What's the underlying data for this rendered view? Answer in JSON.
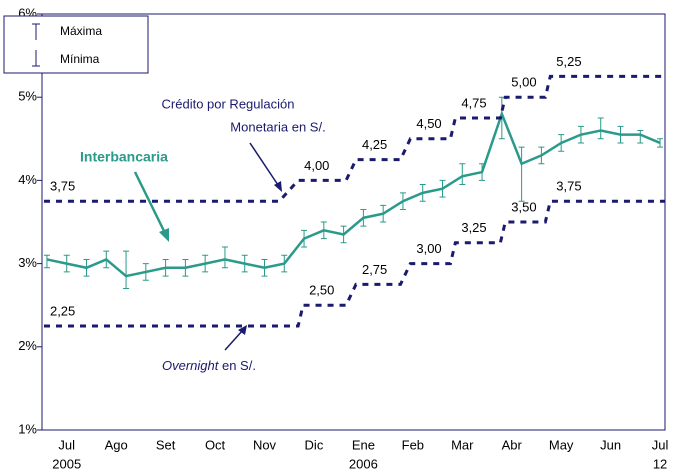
{
  "chart_data": {
    "type": "line",
    "xlim": [
      -0.5,
      12.1
    ],
    "xticks": [
      {
        "value": 0,
        "label": "Jul"
      },
      {
        "value": 1,
        "label": "Ago"
      },
      {
        "value": 2,
        "label": "Set"
      },
      {
        "value": 3,
        "label": "Oct"
      },
      {
        "value": 4,
        "label": "Nov"
      },
      {
        "value": 5,
        "label": "Dic"
      },
      {
        "value": 6,
        "label": "Ene"
      },
      {
        "value": 7,
        "label": "Feb"
      },
      {
        "value": 8,
        "label": "Mar"
      },
      {
        "value": 9,
        "label": "Abr"
      },
      {
        "value": 10,
        "label": "May"
      },
      {
        "value": 11,
        "label": "Jun"
      },
      {
        "value": 12,
        "label": "Jul"
      }
    ],
    "year_labels": [
      {
        "value": 0,
        "label": "2005"
      },
      {
        "value": 6,
        "label": "2006"
      },
      {
        "value": 12,
        "label": "12"
      }
    ],
    "ylim": [
      1,
      6
    ],
    "yticks": [
      {
        "value": 1,
        "label": "1%"
      },
      {
        "value": 2,
        "label": "2%"
      },
      {
        "value": 3,
        "label": "3%"
      },
      {
        "value": 4,
        "label": "4%"
      },
      {
        "value": 5,
        "label": "5%"
      },
      {
        "value": 6,
        "label": "6%"
      }
    ],
    "legend": {
      "corner": "top-left",
      "max_label": "Máxima",
      "min_label": "Mínima"
    },
    "annotations": {
      "interbank": "Interbancaria",
      "credit_line1": "Crédito por Regulación",
      "credit_line2": "Monetaria en S/.",
      "overnight_italic": "Overnight",
      "overnight_rest": " en S/."
    },
    "series": [
      {
        "name": "Interbancaria",
        "color": "#2a9a8a",
        "style": "errorbar",
        "x": [
          -0.4,
          0,
          0.4,
          0.8,
          1.2,
          1.6,
          2.0,
          2.4,
          2.8,
          3.2,
          3.6,
          4.0,
          4.4,
          4.8,
          5.2,
          5.6,
          6.0,
          6.4,
          6.8,
          7.2,
          7.6,
          8.0,
          8.4,
          8.8,
          9.2,
          9.6,
          10.0,
          10.4,
          10.8,
          11.2,
          11.6,
          12.0
        ],
        "values": [
          3.05,
          3.0,
          2.95,
          3.05,
          2.85,
          2.9,
          2.95,
          2.95,
          3.0,
          3.05,
          3.0,
          2.95,
          3.0,
          3.3,
          3.4,
          3.35,
          3.55,
          3.6,
          3.75,
          3.85,
          3.9,
          4.05,
          4.1,
          4.8,
          4.2,
          4.3,
          4.45,
          4.55,
          4.6,
          4.55,
          4.55,
          4.45
        ],
        "max": [
          3.1,
          3.1,
          3.05,
          3.15,
          3.15,
          3.0,
          3.05,
          3.05,
          3.1,
          3.2,
          3.1,
          3.05,
          3.1,
          3.4,
          3.5,
          3.45,
          3.65,
          3.7,
          3.85,
          3.95,
          4.0,
          4.2,
          4.2,
          5.0,
          4.4,
          4.4,
          4.55,
          4.65,
          4.75,
          4.65,
          4.6,
          4.5
        ],
        "min": [
          2.95,
          2.9,
          2.85,
          2.95,
          2.7,
          2.8,
          2.85,
          2.85,
          2.9,
          2.95,
          2.9,
          2.85,
          2.9,
          3.2,
          3.3,
          3.25,
          3.45,
          3.5,
          3.65,
          3.75,
          3.8,
          3.95,
          4.0,
          4.5,
          3.75,
          4.2,
          4.35,
          4.45,
          4.5,
          4.45,
          4.45,
          4.4
        ]
      },
      {
        "name": "Crédito por Regulación Monetaria en S/.",
        "color": "#1a1a6e",
        "style": "step",
        "x": [
          -0.46,
          4.3,
          4.68,
          5.65,
          5.85,
          6.75,
          6.95,
          7.76,
          7.86,
          8.77,
          8.87,
          9.68,
          9.78,
          12.1
        ],
        "values": [
          3.75,
          3.75,
          4.0,
          4.0,
          4.25,
          4.25,
          4.5,
          4.5,
          4.75,
          4.75,
          5.0,
          5.0,
          5.25,
          5.25
        ],
        "value_labels": [
          "3,75",
          null,
          "4,00",
          null,
          "4,25",
          null,
          "4,50",
          null,
          "4,75",
          null,
          "5,00",
          null,
          "5,25",
          null
        ]
      },
      {
        "name": "Overnight en S/.",
        "color": "#1a1a6e",
        "style": "step",
        "x": [
          -0.46,
          4.68,
          4.78,
          5.65,
          5.85,
          6.75,
          6.95,
          7.76,
          7.86,
          8.77,
          8.87,
          9.68,
          9.78,
          12.1
        ],
        "values": [
          2.25,
          2.25,
          2.5,
          2.5,
          2.75,
          2.75,
          3.0,
          3.0,
          3.25,
          3.25,
          3.5,
          3.5,
          3.75,
          3.75
        ],
        "value_labels": [
          "2,25",
          null,
          "2,50",
          null,
          "2,75",
          null,
          "3,00",
          null,
          "3,25",
          null,
          "3,50",
          null,
          "3,75",
          null
        ]
      }
    ]
  }
}
